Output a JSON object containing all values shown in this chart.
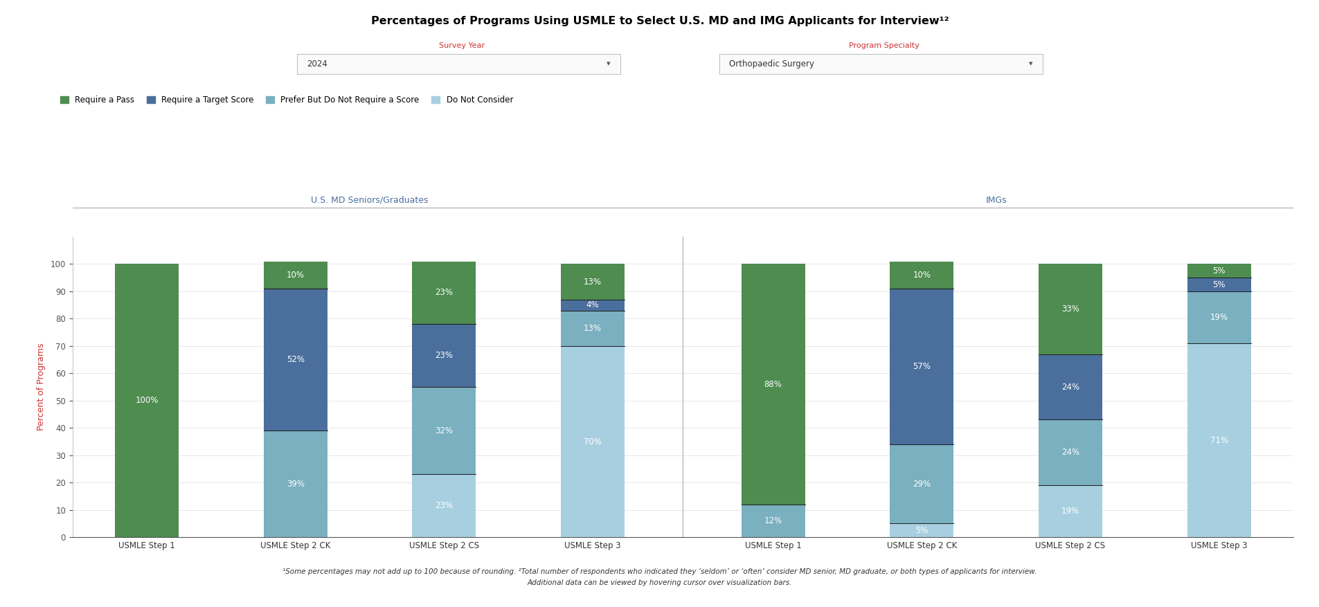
{
  "title": "Percentages of Programs Using USMLE to Select U.S. MD and IMG Applicants for Interview¹²",
  "survey_year_label": "Survey Year",
  "program_specialty_label": "Program Specialty",
  "survey_year_value": "2024",
  "program_specialty_value": "Orthopaedic Surgery",
  "ylabel": "Percent of Programs",
  "footnote1": "¹Some percentages may not add up to 100 because of rounding. ²Total number of respondents who indicated they ‘seldom’ or ‘often’ consider MD senior, MD graduate, or both types of applicants for interview.",
  "footnote2": "Additional data can be viewed by hovering cursor over visualization bars.",
  "section_labels": [
    "U.S. MD Seniors/Graduates",
    "IMGs"
  ],
  "categories": [
    "USMLE Step 1",
    "USMLE Step 2 CK",
    "USMLE Step 2 CS",
    "USMLE Step 3"
  ],
  "legend_labels": [
    "Require a Pass",
    "Require a Target Score",
    "Prefer But Do Not Require a Score",
    "Do Not Consider"
  ],
  "colors": [
    "#4e8c50",
    "#4a6f9c",
    "#7ab0c0",
    "#a8cfe0"
  ],
  "us_md_data": {
    "USMLE Step 1": [
      0,
      0,
      0,
      100
    ],
    "USMLE Step 2 CK": [
      0,
      39,
      52,
      10
    ],
    "USMLE Step 2 CS": [
      23,
      32,
      23,
      23
    ],
    "USMLE Step 3": [
      70,
      13,
      4,
      13
    ]
  },
  "img_data": {
    "USMLE Step 1": [
      0,
      12,
      0,
      88
    ],
    "USMLE Step 2 CK": [
      5,
      29,
      57,
      10
    ],
    "USMLE Step 2 CS": [
      19,
      24,
      24,
      33
    ],
    "USMLE Step 3": [
      71,
      19,
      5,
      5
    ]
  },
  "us_md_labels": {
    "USMLE Step 1": [
      0,
      0,
      0,
      100
    ],
    "USMLE Step 2 CK": [
      0,
      39,
      52,
      10
    ],
    "USMLE Step 2 CS": [
      23,
      32,
      23,
      23
    ],
    "USMLE Step 3": [
      70,
      13,
      4,
      13
    ]
  },
  "img_labels": {
    "USMLE Step 1": [
      0,
      12,
      0,
      88
    ],
    "USMLE Step 2 CK": [
      5,
      29,
      57,
      10
    ],
    "USMLE Step 2 CS": [
      19,
      24,
      24,
      33
    ],
    "USMLE Step 3": [
      71,
      19,
      5,
      5
    ]
  },
  "ylim": [
    0,
    110
  ],
  "yticks": [
    0,
    10,
    20,
    30,
    40,
    50,
    60,
    70,
    80,
    90,
    100
  ],
  "bg_color": "#ffffff",
  "bar_width": 0.6
}
